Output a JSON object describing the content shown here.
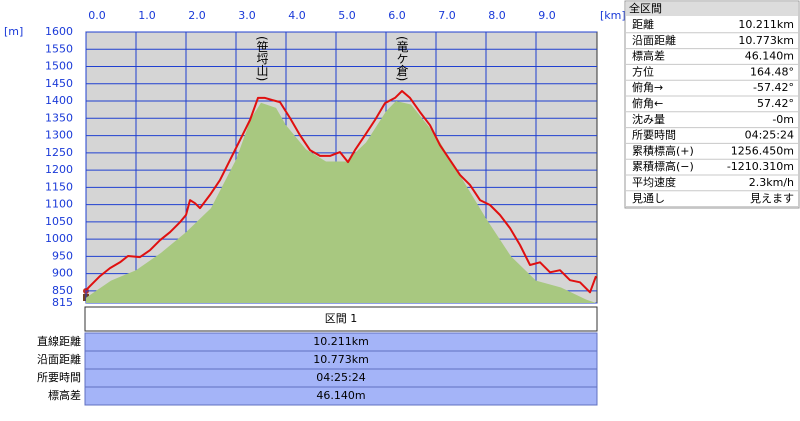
{
  "chart_data": {
    "type": "line",
    "y_unit": "[m]",
    "x_unit": "[km]",
    "xlim": [
      0,
      10.22
    ],
    "ylim": [
      815,
      1600
    ],
    "xticks": [
      {
        "value": 0,
        "label": "0.0"
      },
      {
        "value": 1,
        "label": "1.0"
      },
      {
        "value": 2,
        "label": "2.0"
      },
      {
        "value": 3,
        "label": "3.0"
      },
      {
        "value": 4,
        "label": "4.0"
      },
      {
        "value": 5,
        "label": "5.0"
      },
      {
        "value": 6,
        "label": "6.0"
      },
      {
        "value": 7,
        "label": "7.0"
      },
      {
        "value": 8,
        "label": "8.0"
      },
      {
        "value": 9,
        "label": "9.0"
      }
    ],
    "yticks": [
      815,
      850,
      900,
      950,
      1000,
      1050,
      1100,
      1150,
      1200,
      1250,
      1300,
      1350,
      1400,
      1450,
      1500,
      1550,
      1600
    ],
    "grid": true,
    "annotations": [
      "(笹埒山)",
      "(竜ケ倉)"
    ],
    "series": [
      {
        "color": "#a8c880",
        "fill": true,
        "x": [
          0,
          0.5,
          1.0,
          1.5,
          2.0,
          2.5,
          3.0,
          3.3,
          3.5,
          3.8,
          4.0,
          4.4,
          4.8,
          5.2,
          5.6,
          6.0,
          6.2,
          6.5,
          7.0,
          7.5,
          8.0,
          8.5,
          9.0,
          9.5,
          10.0,
          10.2
        ],
        "values": [
          830,
          880,
          910,
          960,
          1020,
          1090,
          1230,
          1350,
          1395,
          1380,
          1330,
          1260,
          1225,
          1225,
          1280,
          1370,
          1400,
          1390,
          1300,
          1180,
          1060,
          950,
          880,
          860,
          825,
          815
        ]
      },
      {
        "color": "#e01010",
        "fill": false,
        "x": [
          0,
          0.08,
          0.28,
          0.48,
          0.68,
          0.84,
          1.08,
          1.28,
          1.48,
          1.68,
          1.88,
          2.0,
          2.08,
          2.18,
          2.28,
          2.48,
          2.68,
          2.88,
          3.08,
          3.28,
          3.44,
          3.58,
          3.72,
          3.88,
          4.08,
          4.28,
          4.48,
          4.68,
          4.88,
          5.08,
          5.24,
          5.38,
          5.58,
          5.78,
          5.98,
          6.18,
          6.32,
          6.48,
          6.68,
          6.88,
          7.08,
          7.28,
          7.48,
          7.68,
          7.88,
          8.08,
          8.28,
          8.48,
          8.68,
          8.88,
          9.08,
          9.28,
          9.48,
          9.68,
          9.88,
          10.08,
          10.2
        ],
        "values": [
          852,
          864,
          893,
          916,
          933,
          951,
          948,
          968,
          997,
          1020,
          1049,
          1070,
          1113,
          1104,
          1090,
          1128,
          1171,
          1229,
          1287,
          1345,
          1409,
          1409,
          1403,
          1397,
          1351,
          1301,
          1258,
          1241,
          1241,
          1252,
          1223,
          1258,
          1301,
          1345,
          1394,
          1409,
          1429,
          1409,
          1368,
          1330,
          1272,
          1229,
          1186,
          1157,
          1113,
          1099,
          1070,
          1032,
          983,
          925,
          933,
          904,
          910,
          881,
          875,
          846,
          893
        ]
      }
    ]
  },
  "summary_panel": {
    "title": "全区間",
    "rows": [
      [
        "距離",
        "10.211km"
      ],
      [
        "沿面距離",
        "10.773km"
      ],
      [
        "標高差",
        "46.140m"
      ],
      [
        "方位",
        "164.48°"
      ],
      [
        "俯角→",
        "-57.42°"
      ],
      [
        "俯角←",
        "57.42°"
      ],
      [
        "沈み量",
        "-0m"
      ],
      [
        "所要時間",
        "04:25:24"
      ],
      [
        "累積標高(+)",
        "1256.450m"
      ],
      [
        "累積標高(−)",
        "-1210.310m"
      ],
      [
        "平均速度",
        "2.3km/h"
      ],
      [
        "見通し",
        "見えます"
      ]
    ]
  },
  "section_table": {
    "header": "区間 1",
    "rows": [
      [
        "直線距離",
        "10.211km"
      ],
      [
        "沿面距離",
        "10.773km"
      ],
      [
        "所要時間",
        "04:25:24"
      ],
      [
        "標高差",
        "46.140m"
      ]
    ]
  }
}
